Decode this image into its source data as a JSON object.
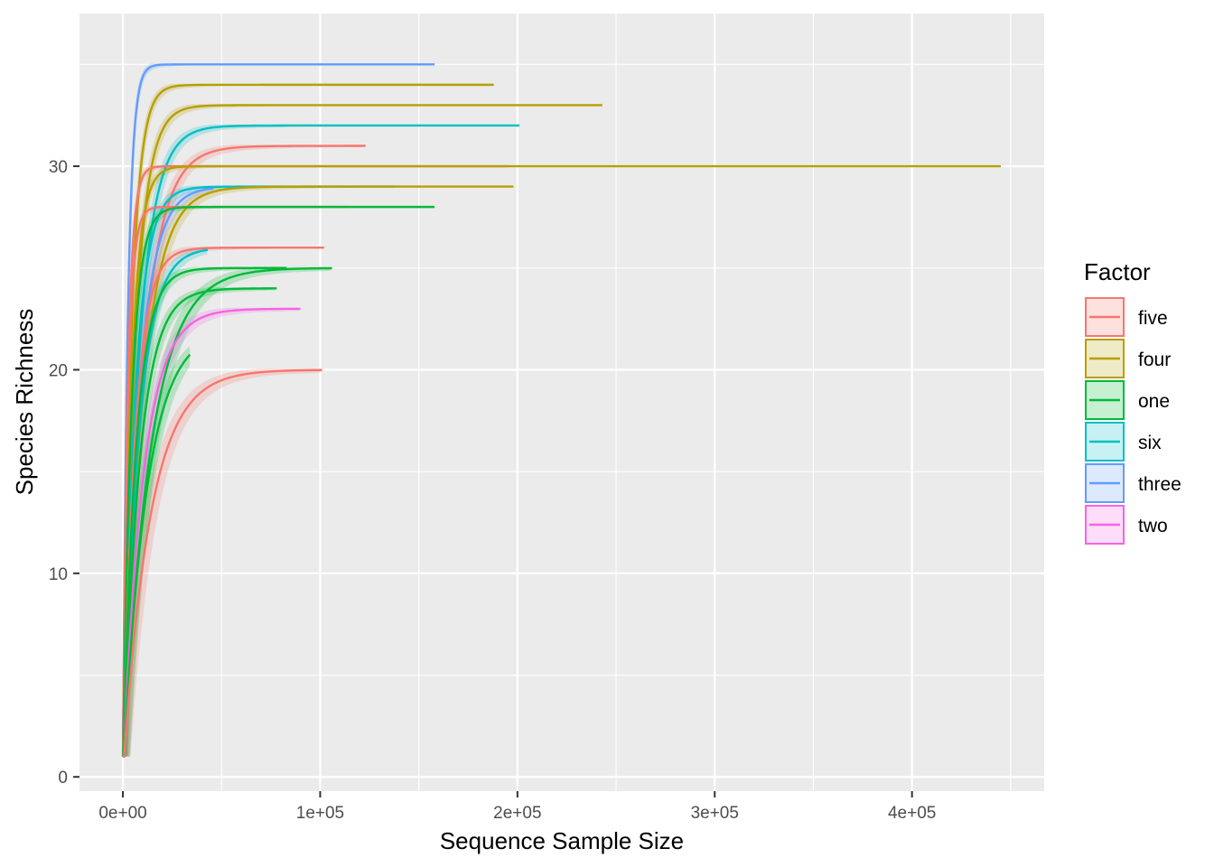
{
  "chart_data": {
    "type": "line",
    "title": "",
    "xlabel": "Sequence Sample Size",
    "ylabel": "Species Richness",
    "xlim": [
      -22000,
      467000
    ],
    "ylim": [
      -0.7,
      37.5
    ],
    "x_ticks": [
      0,
      100000,
      200000,
      300000,
      400000
    ],
    "x_tick_labels": [
      "0e+00",
      "1e+05",
      "2e+05",
      "3e+05",
      "4e+05"
    ],
    "y_ticks": [
      0,
      10,
      20,
      30
    ],
    "y_tick_labels": [
      "0",
      "10",
      "20",
      "30"
    ],
    "grid": true,
    "legend": {
      "title": "Factor",
      "position": "right",
      "entries": [
        "five",
        "four",
        "one",
        "six",
        "three",
        "two"
      ]
    },
    "colors": {
      "five": "#F8766D",
      "four": "#B79F00",
      "one": "#00BA38",
      "six": "#00BFC4",
      "three": "#619CFF",
      "two": "#F564E3"
    },
    "series": [
      {
        "group": "three",
        "final_richness": 35,
        "max_sample_size": 158000
      },
      {
        "group": "four",
        "final_richness": 34,
        "max_sample_size": 188000
      },
      {
        "group": "four",
        "final_richness": 33,
        "max_sample_size": 243000
      },
      {
        "group": "six",
        "final_richness": 32,
        "max_sample_size": 201000
      },
      {
        "group": "five",
        "final_richness": 31,
        "max_sample_size": 123000
      },
      {
        "group": "five",
        "final_richness": 30,
        "max_sample_size": 195000
      },
      {
        "group": "four",
        "final_richness": 30,
        "max_sample_size": 445000
      },
      {
        "group": "six",
        "final_richness": 29,
        "max_sample_size": 138000
      },
      {
        "group": "three",
        "final_richness": 29,
        "max_sample_size": 46000
      },
      {
        "group": "four",
        "final_richness": 29,
        "max_sample_size": 198000
      },
      {
        "group": "five",
        "final_richness": 28,
        "max_sample_size": 115000
      },
      {
        "group": "one",
        "final_richness": 28,
        "max_sample_size": 158000
      },
      {
        "group": "five",
        "final_richness": 26,
        "max_sample_size": 102000
      },
      {
        "group": "six",
        "final_richness": 26,
        "max_sample_size": 43000
      },
      {
        "group": "one",
        "final_richness": 25,
        "max_sample_size": 106000
      },
      {
        "group": "one",
        "final_richness": 25,
        "max_sample_size": 83000
      },
      {
        "group": "one",
        "final_richness": 24,
        "max_sample_size": 78000
      },
      {
        "group": "two",
        "final_richness": 23,
        "max_sample_size": 90000
      },
      {
        "group": "one",
        "final_richness": 22,
        "max_sample_size": 34000
      },
      {
        "group": "five",
        "final_richness": 20,
        "max_sample_size": 101000
      }
    ]
  }
}
